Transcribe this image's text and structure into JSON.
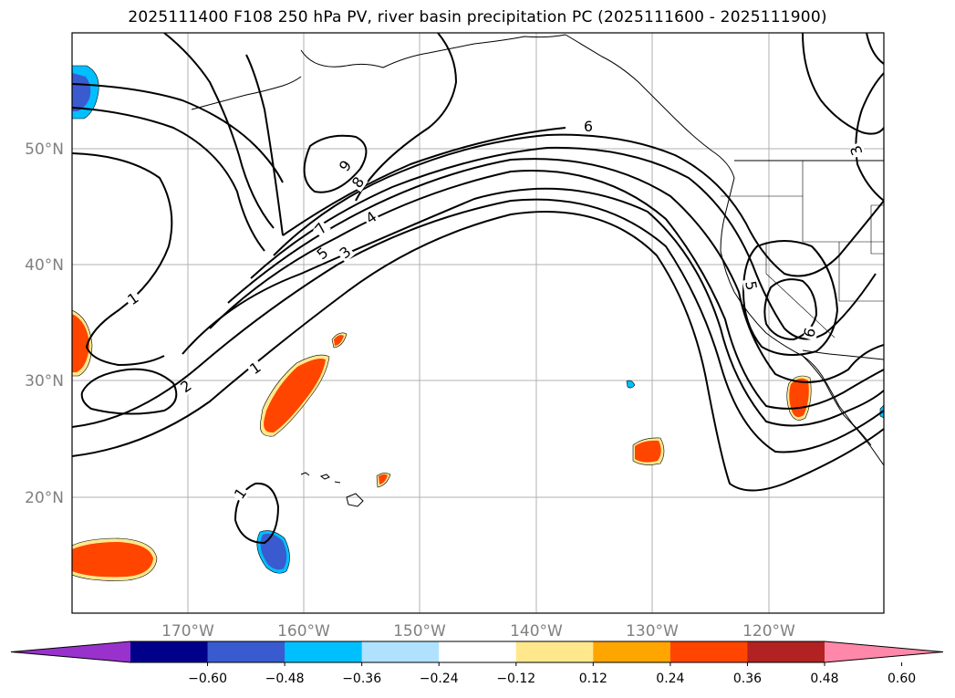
{
  "title": "2025111400 F108 250 hPa PV, river basin precipitation PC (2025111600 - 2025111900)",
  "axes": {
    "lat_labels": [
      "50°N",
      "40°N",
      "30°N",
      "20°N"
    ],
    "lon_labels": [
      "170°W",
      "160°W",
      "150°W",
      "140°W",
      "130°W",
      "120°W"
    ],
    "lat_values": [
      50,
      40,
      30,
      20
    ],
    "lon_values": [
      -170,
      -160,
      -150,
      -140,
      -130,
      -120
    ],
    "grid": true,
    "label_color": "#808080"
  },
  "contour_labels": [
    "9",
    "8",
    "7",
    "6",
    "5",
    "4",
    "3",
    "2",
    "1",
    "1",
    "1",
    "6",
    "5",
    "6",
    "3"
  ],
  "colorbar": {
    "ticks": [
      "−0.60",
      "−0.48",
      "−0.36",
      "−0.24",
      "−0.12",
      "0.12",
      "0.24",
      "0.36",
      "0.48",
      "0.60"
    ],
    "colors": [
      "#9932cc",
      "#00008b",
      "#3a5bd0",
      "#00bfff",
      "#b0e2ff",
      "#ffffff",
      "#ffe88c",
      "#ffa500",
      "#ff4500",
      "#b22222",
      "#ff88aa"
    ],
    "extend": "both"
  }
}
